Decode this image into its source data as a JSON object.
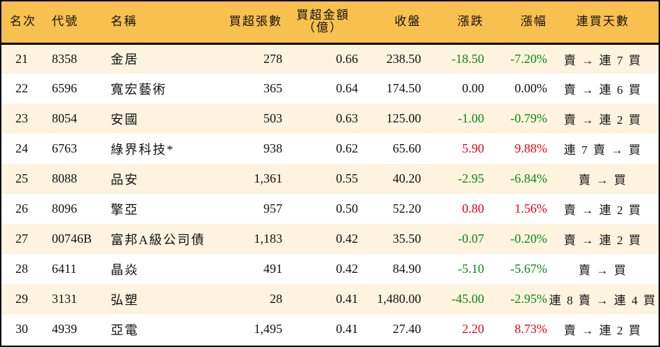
{
  "colors": {
    "header_bg": "#f8c04e",
    "row_odd_bg": "#fdf3df",
    "row_even_bg": "#ffffff",
    "up": "#e8060b",
    "down": "#0a8a12"
  },
  "table": {
    "headers": {
      "rank": "名次",
      "code": "代號",
      "name": "名稱",
      "net_buy_lots": "買超張數",
      "net_buy_amount_line1": "買超金額",
      "net_buy_amount_line2": "（億）",
      "close": "收盤",
      "change": "漲跌",
      "change_pct": "漲幅",
      "streak": "連買天數"
    },
    "rows": [
      {
        "rank": "21",
        "code": "8358",
        "name": "金居",
        "net_buy_lots": "278",
        "net_buy_amount": "0.66",
        "close": "238.50",
        "change": "-18.50",
        "change_pct": "-7.20%",
        "direction": "down",
        "streak": "賣 → 連 7 買"
      },
      {
        "rank": "22",
        "code": "6596",
        "name": "寬宏藝術",
        "net_buy_lots": "365",
        "net_buy_amount": "0.64",
        "close": "174.50",
        "change": "0.00",
        "change_pct": "0.00%",
        "direction": "flat",
        "streak": "賣 → 連 6 買"
      },
      {
        "rank": "23",
        "code": "8054",
        "name": "安國",
        "net_buy_lots": "503",
        "net_buy_amount": "0.63",
        "close": "125.00",
        "change": "-1.00",
        "change_pct": "-0.79%",
        "direction": "down",
        "streak": "賣 → 連 2 買"
      },
      {
        "rank": "24",
        "code": "6763",
        "name": "綠界科技*",
        "net_buy_lots": "938",
        "net_buy_amount": "0.62",
        "close": "65.60",
        "change": "5.90",
        "change_pct": "9.88%",
        "direction": "up",
        "streak": "連 7 賣 → 買"
      },
      {
        "rank": "25",
        "code": "8088",
        "name": "品安",
        "net_buy_lots": "1,361",
        "net_buy_amount": "0.55",
        "close": "40.20",
        "change": "-2.95",
        "change_pct": "-6.84%",
        "direction": "down",
        "streak": "賣 → 買"
      },
      {
        "rank": "26",
        "code": "8096",
        "name": "擎亞",
        "net_buy_lots": "957",
        "net_buy_amount": "0.50",
        "close": "52.20",
        "change": "0.80",
        "change_pct": "1.56%",
        "direction": "up",
        "streak": "賣 → 連 2 買"
      },
      {
        "rank": "27",
        "code": "00746B",
        "name": "富邦A級公司債",
        "net_buy_lots": "1,183",
        "net_buy_amount": "0.42",
        "close": "35.50",
        "change": "-0.07",
        "change_pct": "-0.20%",
        "direction": "down",
        "streak": "賣 → 連 2 買"
      },
      {
        "rank": "28",
        "code": "6411",
        "name": "晶焱",
        "net_buy_lots": "491",
        "net_buy_amount": "0.42",
        "close": "84.90",
        "change": "-5.10",
        "change_pct": "-5.67%",
        "direction": "down",
        "streak": "賣 → 買"
      },
      {
        "rank": "29",
        "code": "3131",
        "name": "弘塑",
        "net_buy_lots": "28",
        "net_buy_amount": "0.41",
        "close": "1,480.00",
        "change": "-45.00",
        "change_pct": "-2.95%",
        "direction": "down",
        "streak": "連 8 賣 → 連 4 買"
      },
      {
        "rank": "30",
        "code": "4939",
        "name": "亞電",
        "net_buy_lots": "1,495",
        "net_buy_amount": "0.41",
        "close": "27.40",
        "change": "2.20",
        "change_pct": "8.73%",
        "direction": "up",
        "streak": "賣 → 連 2 買"
      }
    ]
  }
}
